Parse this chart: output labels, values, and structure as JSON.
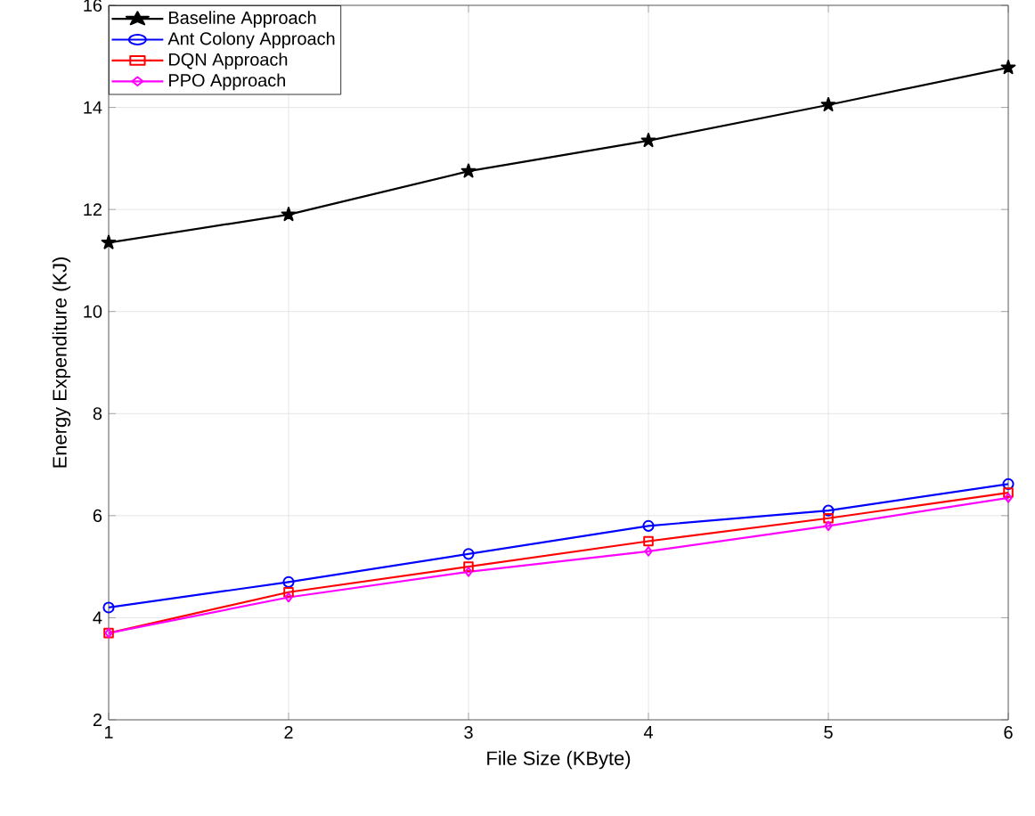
{
  "chart_data": {
    "type": "line",
    "xlabel": "File Size (KByte)",
    "ylabel": "Energy Expenditure (KJ)",
    "x": [
      1,
      2,
      3,
      4,
      5,
      6
    ],
    "xlim": [
      1,
      6
    ],
    "xticks": [
      1,
      2,
      3,
      4,
      5,
      6
    ],
    "ylim": [
      2,
      16
    ],
    "yticks": [
      2,
      4,
      6,
      8,
      10,
      12,
      14,
      16
    ],
    "grid": true,
    "legend": "top left",
    "line_style": "solid",
    "series": [
      {
        "name": "Baseline Approach",
        "color": "#000000",
        "marker": "star",
        "values": [
          11.35,
          11.9,
          12.75,
          13.35,
          14.05,
          14.78
        ]
      },
      {
        "name": "Ant Colony Approach",
        "color": "#0000ff",
        "marker": "circle",
        "values": [
          4.2,
          4.7,
          5.25,
          5.8,
          6.1,
          6.62
        ]
      },
      {
        "name": "DQN Approach",
        "color": "#ff0000",
        "marker": "square",
        "values": [
          3.7,
          4.5,
          5.0,
          5.5,
          5.95,
          6.45
        ]
      },
      {
        "name": "PPO Approach",
        "color": "#ff00ff",
        "marker": "diamond",
        "values": [
          3.7,
          4.4,
          4.9,
          5.3,
          5.8,
          6.35
        ]
      }
    ]
  }
}
